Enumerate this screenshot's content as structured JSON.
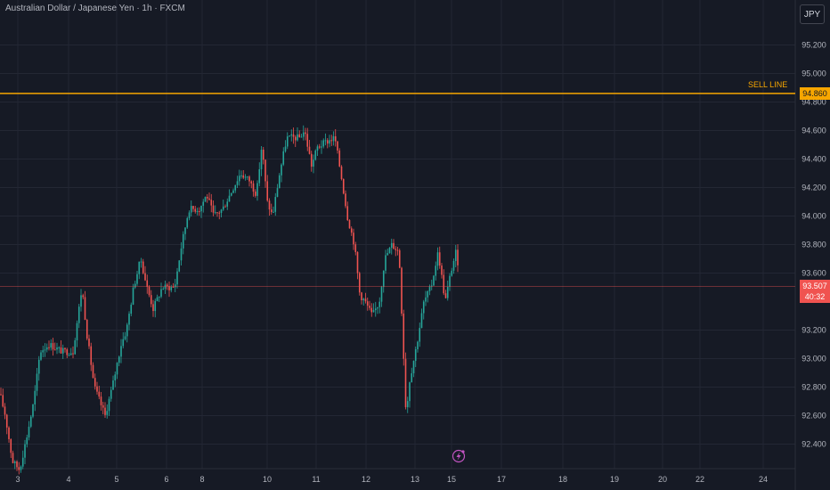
{
  "header": {
    "title": "Australian Dollar / Japanese Yen · 1h · FXCM",
    "currency_label": "JPY"
  },
  "sell_line": {
    "label": "SELL LINE",
    "price": "94.860",
    "value": 94.86,
    "color": "#f7a600"
  },
  "current_price": {
    "price": "93.507",
    "countdown": "40:32",
    "value": 93.507,
    "color": "#f05350"
  },
  "colors": {
    "background": "#161a25",
    "up": "#26a69a",
    "down": "#ef5350",
    "grid": "#232734",
    "axis_text": "#b2b5be"
  },
  "chart_data": {
    "type": "candlestick",
    "y_axis": {
      "ticks": [
        95.2,
        95.0,
        94.8,
        94.6,
        94.4,
        94.2,
        94.0,
        93.8,
        93.6,
        93.2,
        93.0,
        92.8,
        92.6,
        92.4
      ],
      "tick_labels": [
        "95.200",
        "95.000",
        "94.800",
        "94.600",
        "94.400",
        "94.200",
        "94.000",
        "93.800",
        "93.600",
        "93.200",
        "93.000",
        "92.800",
        "92.600",
        "92.400"
      ],
      "ylim": [
        92.2,
        95.45
      ]
    },
    "x_axis": {
      "tick_labels": [
        "3",
        "4",
        "5",
        "6",
        "8",
        "10",
        "11",
        "12",
        "13",
        "15",
        "17",
        "18",
        "19",
        "20",
        "22",
        "24"
      ]
    },
    "grid": true,
    "ohlc_anchors": [
      [
        0,
        92.75
      ],
      [
        6,
        92.6
      ],
      [
        14,
        92.28
      ],
      [
        22,
        92.22
      ],
      [
        30,
        92.45
      ],
      [
        38,
        92.7
      ],
      [
        45,
        93.05
      ],
      [
        55,
        93.1
      ],
      [
        70,
        93.05
      ],
      [
        82,
        93.05
      ],
      [
        92,
        93.5
      ],
      [
        98,
        93.15
      ],
      [
        106,
        92.8
      ],
      [
        118,
        92.6
      ],
      [
        126,
        92.8
      ],
      [
        136,
        93.1
      ],
      [
        142,
        93.2
      ],
      [
        150,
        93.5
      ],
      [
        158,
        93.7
      ],
      [
        165,
        93.5
      ],
      [
        172,
        93.35
      ],
      [
        182,
        93.5
      ],
      [
        196,
        93.5
      ],
      [
        204,
        93.8
      ],
      [
        212,
        94.05
      ],
      [
        224,
        94.05
      ],
      [
        232,
        94.15
      ],
      [
        240,
        94.0
      ],
      [
        250,
        94.05
      ],
      [
        262,
        94.2
      ],
      [
        270,
        94.3
      ],
      [
        280,
        94.25
      ],
      [
        288,
        94.15
      ],
      [
        294,
        94.5
      ],
      [
        300,
        94.1
      ],
      [
        306,
        94.0
      ],
      [
        314,
        94.3
      ],
      [
        322,
        94.55
      ],
      [
        336,
        94.55
      ],
      [
        342,
        94.6
      ],
      [
        350,
        94.35
      ],
      [
        356,
        94.48
      ],
      [
        366,
        94.52
      ],
      [
        376,
        94.55
      ],
      [
        384,
        94.25
      ],
      [
        390,
        94.0
      ],
      [
        398,
        93.8
      ],
      [
        404,
        93.45
      ],
      [
        410,
        93.4
      ],
      [
        418,
        93.3
      ],
      [
        426,
        93.4
      ],
      [
        432,
        93.7
      ],
      [
        440,
        93.8
      ],
      [
        448,
        93.75
      ],
      [
        452,
        93.2
      ],
      [
        456,
        92.6
      ],
      [
        460,
        92.85
      ],
      [
        468,
        93.1
      ],
      [
        476,
        93.4
      ],
      [
        484,
        93.5
      ],
      [
        492,
        93.75
      ],
      [
        500,
        93.4
      ],
      [
        506,
        93.6
      ],
      [
        512,
        93.75
      ],
      [
        516,
        93.51
      ]
    ]
  }
}
